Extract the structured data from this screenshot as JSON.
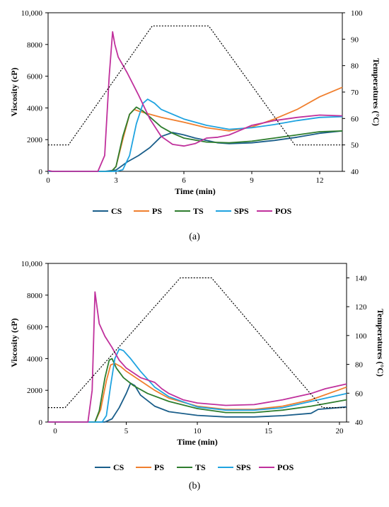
{
  "figure": {
    "panels": [
      "a",
      "b"
    ]
  },
  "chart_data": [
    {
      "type": "line",
      "panel_label": "(a)",
      "xlabel": "Time (min)",
      "ylabel": "Viscosity (cP)",
      "y2label": "Temperatures (°C)",
      "xlim": [
        0,
        13
      ],
      "ylim": [
        0,
        10000
      ],
      "y2lim": [
        40,
        100
      ],
      "x_ticks": [
        0,
        3,
        6,
        9,
        12
      ],
      "y_ticks": [
        0,
        2000,
        4000,
        6000,
        8000,
        10000
      ],
      "y_tick_labels": [
        "0",
        "2000",
        "4000",
        "6000",
        "8000",
        "10,000"
      ],
      "y2_ticks": [
        40,
        50,
        60,
        70,
        80,
        90,
        100
      ],
      "legend": "bottom",
      "grid": false,
      "series": [
        {
          "name": "CS",
          "color": "#1a5e8a",
          "points": [
            [
              0,
              0
            ],
            [
              2.5,
              0
            ],
            [
              3.0,
              80
            ],
            [
              3.5,
              600
            ],
            [
              4.0,
              1000
            ],
            [
              4.5,
              1500
            ],
            [
              5.0,
              2200
            ],
            [
              5.5,
              2450
            ],
            [
              6.0,
              2300
            ],
            [
              6.5,
              2100
            ],
            [
              7.0,
              1950
            ],
            [
              7.5,
              1800
            ],
            [
              8.0,
              1750
            ],
            [
              9.0,
              1800
            ],
            [
              10.0,
              1950
            ],
            [
              11.0,
              2150
            ],
            [
              12.0,
              2400
            ],
            [
              13.0,
              2550
            ]
          ]
        },
        {
          "name": "PS",
          "color": "#f07f2e",
          "points": [
            [
              0,
              0
            ],
            [
              2.8,
              0
            ],
            [
              3.0,
              300
            ],
            [
              3.3,
              2000
            ],
            [
              3.6,
              3600
            ],
            [
              3.8,
              3900
            ],
            [
              4.0,
              3800
            ],
            [
              4.5,
              3600
            ],
            [
              5.0,
              3400
            ],
            [
              6.0,
              3100
            ],
            [
              7.0,
              2750
            ],
            [
              8.0,
              2550
            ],
            [
              9.0,
              2800
            ],
            [
              10.0,
              3300
            ],
            [
              11.0,
              3900
            ],
            [
              12.0,
              4700
            ],
            [
              13.0,
              5300
            ]
          ]
        },
        {
          "name": "TS",
          "color": "#2e7d2e",
          "points": [
            [
              0,
              0
            ],
            [
              2.8,
              0
            ],
            [
              3.0,
              300
            ],
            [
              3.3,
              2200
            ],
            [
              3.6,
              3600
            ],
            [
              3.9,
              4050
            ],
            [
              4.2,
              3800
            ],
            [
              4.6,
              3300
            ],
            [
              5.0,
              2800
            ],
            [
              5.5,
              2400
            ],
            [
              6.0,
              2100
            ],
            [
              7.0,
              1850
            ],
            [
              8.0,
              1800
            ],
            [
              9.0,
              1900
            ],
            [
              10.0,
              2100
            ],
            [
              11.0,
              2300
            ],
            [
              12.0,
              2500
            ],
            [
              13.0,
              2550
            ]
          ]
        },
        {
          "name": "SPS",
          "color": "#1fa3e0",
          "points": [
            [
              0,
              0
            ],
            [
              3.0,
              0
            ],
            [
              3.3,
              100
            ],
            [
              3.6,
              1000
            ],
            [
              3.9,
              3000
            ],
            [
              4.2,
              4300
            ],
            [
              4.4,
              4550
            ],
            [
              4.7,
              4300
            ],
            [
              5.0,
              3900
            ],
            [
              6.0,
              3300
            ],
            [
              7.0,
              2900
            ],
            [
              8.0,
              2650
            ],
            [
              9.0,
              2750
            ],
            [
              10.0,
              2950
            ],
            [
              11.0,
              3200
            ],
            [
              12.0,
              3400
            ],
            [
              13.0,
              3450
            ]
          ]
        },
        {
          "name": "POS",
          "color": "#c0309c",
          "points": [
            [
              0,
              50
            ],
            [
              0.2,
              0
            ],
            [
              2.2,
              0
            ],
            [
              2.5,
              1000
            ],
            [
              2.7,
              6000
            ],
            [
              2.85,
              8800
            ],
            [
              2.95,
              8000
            ],
            [
              3.1,
              7200
            ],
            [
              3.5,
              6200
            ],
            [
              4.0,
              4800
            ],
            [
              4.5,
              3300
            ],
            [
              5.0,
              2200
            ],
            [
              5.5,
              1700
            ],
            [
              6.0,
              1600
            ],
            [
              6.5,
              1750
            ],
            [
              7.0,
              2100
            ],
            [
              7.5,
              2150
            ],
            [
              8.0,
              2300
            ],
            [
              8.5,
              2600
            ],
            [
              9.0,
              2900
            ],
            [
              10.0,
              3200
            ],
            [
              11.0,
              3400
            ],
            [
              12.0,
              3550
            ],
            [
              13.0,
              3500
            ]
          ]
        },
        {
          "name": "",
          "color": "#000000",
          "dashed": true,
          "axis": "right",
          "points": [
            [
              0,
              50
            ],
            [
              0.9,
              50
            ],
            [
              4.6,
              95
            ],
            [
              7.1,
              95
            ],
            [
              10.9,
              50
            ],
            [
              13,
              50
            ]
          ]
        }
      ]
    },
    {
      "type": "line",
      "panel_label": "(b)",
      "xlabel": "Time (min)",
      "ylabel": "Viscosity (cP)",
      "y2label": "Temperatures (°C)",
      "xlim": [
        -0.5,
        20.5
      ],
      "ylim": [
        0,
        10000
      ],
      "y2lim": [
        40,
        150
      ],
      "x_ticks": [
        0,
        5,
        10,
        15,
        20
      ],
      "y_ticks": [
        0,
        2000,
        4000,
        6000,
        8000,
        10000
      ],
      "y_tick_labels": [
        "0",
        "2000",
        "4000",
        "6000",
        "8000",
        "10,000"
      ],
      "y2_ticks": [
        40,
        60,
        80,
        100,
        120,
        140
      ],
      "legend": "bottom",
      "grid": false,
      "series": [
        {
          "name": "CS",
          "color": "#1a5e8a",
          "points": [
            [
              -0.5,
              0
            ],
            [
              3.5,
              0
            ],
            [
              4.0,
              200
            ],
            [
              4.5,
              900
            ],
            [
              5.0,
              1800
            ],
            [
              5.3,
              2450
            ],
            [
              5.6,
              2300
            ],
            [
              6.0,
              1700
            ],
            [
              7.0,
              1000
            ],
            [
              8.0,
              650
            ],
            [
              10.0,
              420
            ],
            [
              12.0,
              320
            ],
            [
              14.0,
              320
            ],
            [
              16.0,
              400
            ],
            [
              18.0,
              550
            ],
            [
              18.5,
              800
            ],
            [
              20.5,
              950
            ]
          ]
        },
        {
          "name": "PS",
          "color": "#f07f2e",
          "points": [
            [
              -0.5,
              0
            ],
            [
              2.8,
              0
            ],
            [
              3.2,
              800
            ],
            [
              3.6,
              2600
            ],
            [
              3.9,
              3600
            ],
            [
              4.2,
              3700
            ],
            [
              4.6,
              3500
            ],
            [
              5.0,
              3200
            ],
            [
              6.0,
              2600
            ],
            [
              7.0,
              2000
            ],
            [
              8.0,
              1500
            ],
            [
              10.0,
              1000
            ],
            [
              12.0,
              800
            ],
            [
              14.0,
              800
            ],
            [
              16.0,
              1000
            ],
            [
              18.0,
              1400
            ],
            [
              20.5,
              2200
            ]
          ]
        },
        {
          "name": "TS",
          "color": "#2e7d2e",
          "points": [
            [
              -0.5,
              0
            ],
            [
              2.8,
              0
            ],
            [
              3.1,
              700
            ],
            [
              3.5,
              2800
            ],
            [
              3.8,
              3900
            ],
            [
              4.0,
              4000
            ],
            [
              4.3,
              3400
            ],
            [
              4.8,
              2800
            ],
            [
              5.5,
              2300
            ],
            [
              6.5,
              1800
            ],
            [
              8.0,
              1300
            ],
            [
              10.0,
              850
            ],
            [
              12.0,
              600
            ],
            [
              14.0,
              600
            ],
            [
              16.0,
              750
            ],
            [
              18.0,
              1000
            ],
            [
              20.5,
              1400
            ]
          ]
        },
        {
          "name": "SPS",
          "color": "#1fa3e0",
          "points": [
            [
              -0.5,
              0
            ],
            [
              3.3,
              0
            ],
            [
              3.6,
              400
            ],
            [
              3.9,
              2300
            ],
            [
              4.2,
              4000
            ],
            [
              4.5,
              4600
            ],
            [
              4.8,
              4500
            ],
            [
              5.3,
              4000
            ],
            [
              6.0,
              3200
            ],
            [
              7.0,
              2200
            ],
            [
              8.0,
              1600
            ],
            [
              10.0,
              950
            ],
            [
              12.0,
              750
            ],
            [
              14.0,
              750
            ],
            [
              16.0,
              900
            ],
            [
              18.0,
              1300
            ],
            [
              20.5,
              1800
            ]
          ]
        },
        {
          "name": "POS",
          "color": "#c0309c",
          "points": [
            [
              -0.5,
              0
            ],
            [
              2.3,
              0
            ],
            [
              2.6,
              2000
            ],
            [
              2.8,
              8200
            ],
            [
              2.95,
              7200
            ],
            [
              3.1,
              6200
            ],
            [
              3.5,
              5400
            ],
            [
              4.0,
              4700
            ],
            [
              4.5,
              3900
            ],
            [
              5.0,
              3400
            ],
            [
              6.0,
              2800
            ],
            [
              7.0,
              2500
            ],
            [
              7.5,
              2100
            ],
            [
              8.0,
              1800
            ],
            [
              9.0,
              1400
            ],
            [
              10.0,
              1200
            ],
            [
              12.0,
              1050
            ],
            [
              14.0,
              1100
            ],
            [
              16.0,
              1400
            ],
            [
              18.0,
              1800
            ],
            [
              19.0,
              2100
            ],
            [
              20.5,
              2400
            ]
          ]
        },
        {
          "name": "",
          "color": "#000000",
          "dashed": true,
          "axis": "right",
          "points": [
            [
              -0.5,
              50
            ],
            [
              0.7,
              50
            ],
            [
              8.8,
              140
            ],
            [
              11.0,
              140
            ],
            [
              18.8,
              50
            ],
            [
              20.5,
              50
            ]
          ]
        }
      ]
    }
  ]
}
